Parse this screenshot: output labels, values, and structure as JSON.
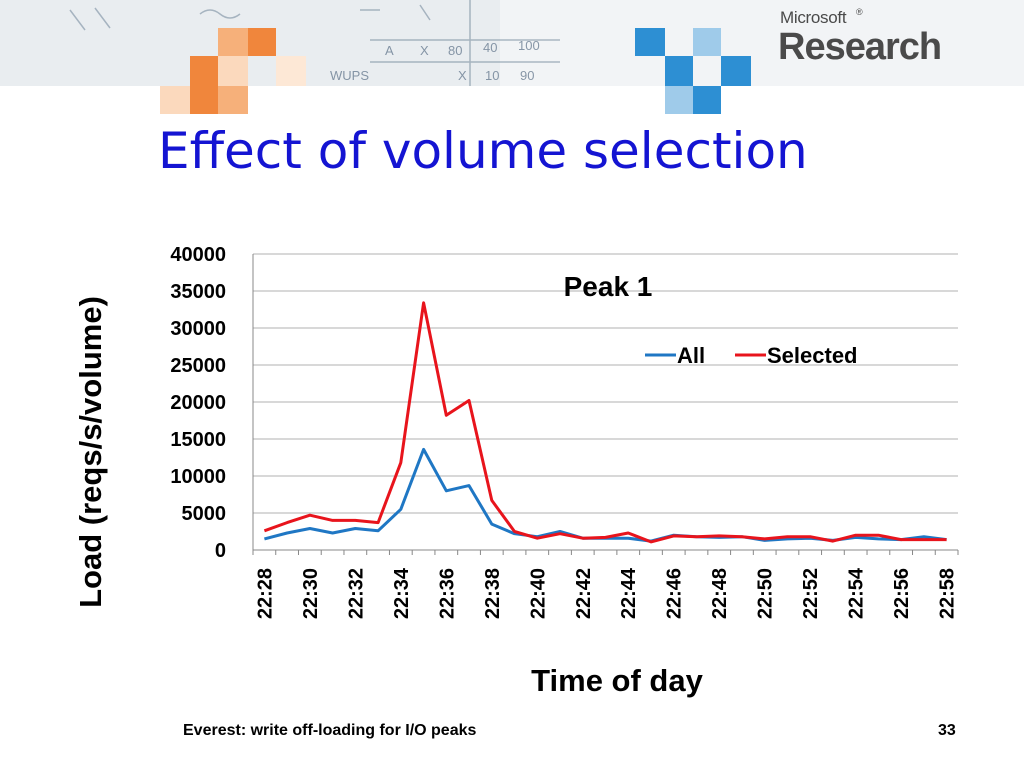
{
  "slide": {
    "title": "Effect of volume selection",
    "footer": "Everest: write off-loading for I/O peaks",
    "page_number": "33"
  },
  "logo": {
    "company": "Microsoft",
    "trademark": "®",
    "division": "Research"
  },
  "colors": {
    "title": "#1414d2",
    "series_all": "#1f77c4",
    "series_selected": "#e8141c",
    "gridline": "#b0b0b0",
    "logo_blue": "#2d8fd3",
    "logo_orange": "#f0863c"
  },
  "chart_data": {
    "type": "line",
    "title": "Peak 1",
    "xlabel": "Time of day",
    "ylabel": "Load (reqs/s/volume)",
    "ylim": [
      0,
      40000
    ],
    "yticks": [
      "0",
      "5000",
      "10000",
      "15000",
      "20000",
      "25000",
      "30000",
      "35000",
      "40000"
    ],
    "x": [
      "22:28",
      "22:29",
      "22:30",
      "22:31",
      "22:32",
      "22:33",
      "22:34",
      "22:35",
      "22:36",
      "22:37",
      "22:38",
      "22:39",
      "22:40",
      "22:41",
      "22:42",
      "22:43",
      "22:44",
      "22:45",
      "22:46",
      "22:47",
      "22:48",
      "22:49",
      "22:50",
      "22:51",
      "22:52",
      "22:53",
      "22:54",
      "22:55",
      "22:56",
      "22:57",
      "22:58"
    ],
    "xtick_labels": [
      "22:28",
      "22:30",
      "22:32",
      "22:34",
      "22:36",
      "22:38",
      "22:40",
      "22:42",
      "22:44",
      "22:46",
      "22:48",
      "22:50",
      "22:52",
      "22:54",
      "22:56",
      "22:58"
    ],
    "legend_position": "top-right",
    "grid": true,
    "series": [
      {
        "name": "All",
        "values": [
          1500,
          2300,
          2900,
          2300,
          2900,
          2600,
          5500,
          13600,
          8000,
          8700,
          3500,
          2200,
          1800,
          2500,
          1600,
          1600,
          1600,
          1200,
          2000,
          1800,
          1700,
          1800,
          1300,
          1500,
          1600,
          1300,
          1700,
          1500,
          1400,
          1800,
          1400
        ]
      },
      {
        "name": "Selected",
        "values": [
          2600,
          3700,
          4700,
          4000,
          4000,
          3700,
          11800,
          33400,
          18200,
          20200,
          6700,
          2500,
          1600,
          2200,
          1600,
          1700,
          2300,
          1100,
          1900,
          1800,
          1900,
          1800,
          1500,
          1800,
          1800,
          1200,
          2000,
          2000,
          1400,
          1400,
          1400
        ]
      }
    ]
  }
}
